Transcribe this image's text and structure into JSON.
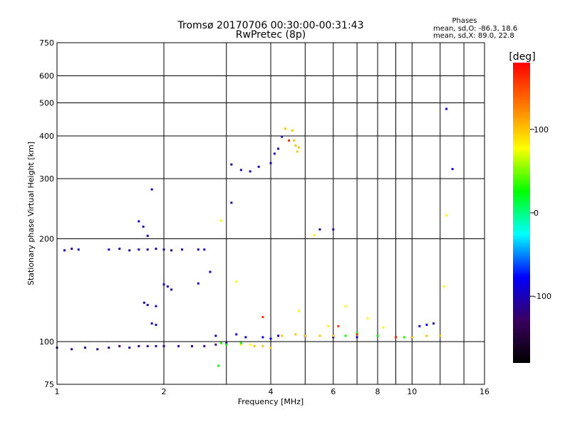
{
  "chart_data": {
    "type": "scatter",
    "title": "Tromsø 20170706 00:30:00-00:31:43",
    "subtitle": "RwPretec (8p)",
    "xlabel": "Frequency [MHz]",
    "ylabel": "Stationary phase Virtual Height [km]",
    "x_scale": "log",
    "y_scale": "log",
    "xlim": [
      1,
      16
    ],
    "ylim": [
      75,
      750
    ],
    "x_ticks": [
      1,
      2,
      4,
      6,
      8,
      10,
      16
    ],
    "x_minor_ticks": [
      3,
      5,
      7,
      9,
      12,
      14
    ],
    "y_ticks": [
      75,
      100,
      200,
      300,
      400,
      500,
      600,
      750
    ],
    "grid": true,
    "phase_stats": {
      "heading": "Phases",
      "line_o": "mean, sd,O: -86.3, 18.6",
      "line_x": "mean, sd,X:  89.0, 22.8"
    },
    "colorbar": {
      "label": "[deg]",
      "ticks": [
        100,
        0,
        -100
      ],
      "range": [
        -180,
        180
      ],
      "stops": [
        "#ff0000",
        "#ff7a00",
        "#ffff00",
        "#00ff00",
        "#00ffff",
        "#0000ff",
        "#3a0060",
        "#000000"
      ]
    },
    "series": [
      {
        "phase": -105,
        "points": [
          [
            1.05,
            185
          ],
          [
            1.1,
            187
          ],
          [
            1.15,
            186
          ],
          [
            1.4,
            186
          ],
          [
            1.5,
            187
          ],
          [
            1.6,
            185
          ],
          [
            1.7,
            186
          ],
          [
            1.8,
            186
          ],
          [
            1.9,
            187
          ],
          [
            2.0,
            186
          ],
          [
            2.1,
            185
          ],
          [
            2.25,
            186
          ],
          [
            2.5,
            186
          ],
          [
            2.6,
            186
          ]
        ]
      },
      {
        "phase": -110,
        "points": [
          [
            1.0,
            96
          ],
          [
            1.1,
            95
          ],
          [
            1.2,
            96
          ],
          [
            1.3,
            95
          ],
          [
            1.4,
            96
          ],
          [
            1.5,
            97
          ],
          [
            1.6,
            96
          ],
          [
            1.7,
            97
          ],
          [
            1.8,
            97
          ],
          [
            1.9,
            97
          ],
          [
            2.0,
            97
          ],
          [
            2.2,
            97
          ],
          [
            2.4,
            97
          ],
          [
            2.6,
            97
          ],
          [
            2.8,
            98
          ],
          [
            3.0,
            99
          ]
        ]
      },
      {
        "phase": -95,
        "points": [
          [
            1.76,
            130
          ],
          [
            1.8,
            128
          ],
          [
            1.9,
            127
          ],
          [
            2.0,
            147
          ],
          [
            2.05,
            145
          ],
          [
            2.1,
            142
          ],
          [
            1.85,
            113
          ],
          [
            1.9,
            112
          ],
          [
            2.5,
            148
          ],
          [
            1.75,
            217
          ],
          [
            1.8,
            204
          ],
          [
            1.85,
            279
          ],
          [
            1.7,
            225
          ],
          [
            2.7,
            160
          ]
        ]
      },
      {
        "phase": -100,
        "points": [
          [
            3.1,
            330
          ],
          [
            3.3,
            318
          ],
          [
            3.5,
            315
          ],
          [
            3.7,
            325
          ],
          [
            4.0,
            333
          ],
          [
            4.1,
            355
          ],
          [
            4.2,
            367
          ],
          [
            4.3,
            398
          ],
          [
            3.1,
            255
          ],
          [
            5.5,
            213
          ],
          [
            6.0,
            213
          ]
        ]
      },
      {
        "phase": -90,
        "points": [
          [
            2.8,
            104
          ],
          [
            3.2,
            105
          ],
          [
            3.4,
            103
          ],
          [
            3.8,
            103
          ],
          [
            4.0,
            102
          ],
          [
            4.2,
            104
          ],
          [
            5.0,
            104
          ],
          [
            6.0,
            103
          ],
          [
            7.0,
            103
          ],
          [
            8.0,
            104
          ],
          [
            9.0,
            103
          ],
          [
            10.0,
            103
          ],
          [
            10.5,
            111
          ],
          [
            11.0,
            112
          ],
          [
            11.5,
            113
          ],
          [
            12.5,
            480
          ],
          [
            13.0,
            320
          ]
        ]
      },
      {
        "phase": 100,
        "points": [
          [
            4.4,
            420
          ],
          [
            4.6,
            415
          ],
          [
            4.65,
            388
          ],
          [
            4.7,
            375
          ],
          [
            4.75,
            360
          ],
          [
            4.8,
            370
          ],
          [
            3.6,
            97
          ],
          [
            3.8,
            97
          ],
          [
            4.0,
            96
          ],
          [
            4.3,
            104
          ],
          [
            4.7,
            105
          ],
          [
            5.0,
            104
          ],
          [
            5.5,
            104
          ],
          [
            6.0,
            104
          ],
          [
            10.0,
            103
          ],
          [
            11.0,
            104
          ],
          [
            12.0,
            104
          ]
        ]
      },
      {
        "phase": 80,
        "points": [
          [
            2.9,
            226
          ],
          [
            3.2,
            150
          ],
          [
            5.3,
            205
          ],
          [
            3.3,
            98
          ],
          [
            3.5,
            98
          ],
          [
            4.8,
            123
          ],
          [
            5.8,
            111
          ],
          [
            6.5,
            127
          ],
          [
            7.5,
            117
          ],
          [
            8.3,
            110
          ],
          [
            12.3,
            145
          ],
          [
            12.5,
            234
          ]
        ]
      },
      {
        "phase": 30,
        "points": [
          [
            2.85,
            85
          ],
          [
            2.9,
            99
          ],
          [
            3.0,
            98
          ],
          [
            3.3,
            99
          ],
          [
            6.5,
            104
          ],
          [
            7.0,
            106
          ],
          [
            8.0,
            104
          ],
          [
            9.5,
            103
          ]
        ]
      },
      {
        "phase": 160,
        "points": [
          [
            4.5,
            388
          ],
          [
            3.8,
            118
          ],
          [
            6.2,
            111
          ],
          [
            7.0,
            105
          ],
          [
            9.0,
            103
          ]
        ]
      }
    ]
  }
}
